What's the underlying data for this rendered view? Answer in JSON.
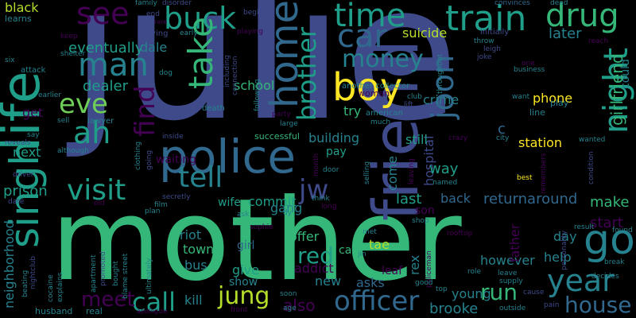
{
  "background_color": "#000000",
  "palette": {
    "dark_purple": "#440154",
    "indigo": "#3e4a89",
    "slate_blue": "#31688e",
    "teal": "#26828e",
    "sea_green": "#1f9e89",
    "green": "#35b779",
    "light_green": "#6ece58",
    "lime": "#b5de2b",
    "yellow": "#fde725"
  },
  "words": {
    "julie": "julie",
    "mother": "mother",
    "friend": "friend",
    "life": "life",
    "police": "police",
    "singh": "singh",
    "boy": "boy",
    "home": "home",
    "train": "train",
    "drug": "drug",
    "time": "time",
    "car": "car",
    "buck": "buck",
    "man": "man",
    "take": "take",
    "night": "night",
    "see": "see",
    "eve": "eve",
    "ah": "ah",
    "find": "find",
    "go": "go",
    "year": "year",
    "joon": "joon",
    "brother": "brother",
    "money": "money",
    "visit": "visit",
    "tell": "tell",
    "jw": "jw",
    "call": "call",
    "officer": "officer",
    "jung": "jung",
    "house": "house",
    "meet": "meet",
    "red": "red",
    "run": "run",
    "girlfriend": "girlfriend",
    "later": "later",
    "prison": "prison",
    "dealer": "dealer",
    "station": "station",
    "phone": "phone",
    "returnaround": "returnaround",
    "start": "start",
    "make": "make",
    "neighborhood": "neighborhood",
    "black": "black",
    "eventually": "eventually",
    "dale": "dale",
    "school": "school",
    "suicide": "suicide",
    "brooke": "brooke",
    "crime": "crime",
    "hospital": "hospital",
    "building": "building",
    "commit": "commit",
    "way": "way",
    "come": "come",
    "last": "last",
    "back": "back",
    "son": "son",
    "gang": "gang",
    "riot": "riot",
    "town": "town",
    "bus": "bus",
    "give": "give",
    "show": "show",
    "offer": "offer",
    "addict": "addict",
    "new": "new",
    "asks": "asks",
    "however": "however",
    "father": "father",
    "day": "day",
    "help": "help",
    "also": "also",
    "young": "young",
    "kill": "kill",
    "girl": "girl",
    "tae": "tae",
    "care": "care",
    "try": "try",
    "pay": "pay",
    "still": "still",
    "wife": "wife",
    "waiting": "waiting",
    "get": "get",
    "next": "next",
    "could": "could",
    "learns": "learns",
    "keep": "keep",
    "family": "family",
    "disorder": "disorder",
    "trying": "trying",
    "early": "early",
    "playing": "playing",
    "convinces": "convinces",
    "dead": "dead",
    "reach": "reach",
    "initially": "initially",
    "leigh": "leigh",
    "joke": "joke",
    "another_collector": "another collector",
    "woman": "woman",
    "american": "american",
    "club": "club",
    "lift": "lift",
    "much": "much",
    "line": "line",
    "want": "want",
    "play": "play",
    "successful": "successful",
    "large": "large",
    "party": "party",
    "lawyer": "lawyer",
    "sell": "sell",
    "death": "death",
    "six": "six",
    "attack": "attack",
    "earlier": "earlier",
    "shelter": "shelter",
    "dog": "dog",
    "including": "including",
    "connection": "connection",
    "following": "following",
    "inside": "inside",
    "although": "although",
    "clothing": "clothing",
    "going": "going",
    "reveals": "reveals",
    "say": "say",
    "driver": "driver",
    "date": "date",
    "secretly": "secretly",
    "film": "film",
    "plan": "plan",
    "ask": "ask",
    "sophie": "sophie",
    "think": "think",
    "long": "long",
    "named": "named",
    "best": "best",
    "wanted": "wanted",
    "city": "city",
    "crazy": "crazy",
    "throughout": "throughout",
    "one": "one",
    "business": "business",
    "throw": "throw",
    "found": "found",
    "result": "result",
    "break": "break",
    "decides": "decides",
    "condition": "condition",
    "personality": "personality",
    "leave": "leave",
    "supply": "supply",
    "role": "role",
    "cause": "cause",
    "pain": "pain",
    "outside": "outside",
    "rooftop": "rooftop",
    "shop": "shop",
    "policeman": "policeman",
    "leaf": "leaf",
    "rex": "rex",
    "jin": "jin",
    "met": "met",
    "good": "good",
    "top": "top",
    "soon": "soon",
    "age": "age",
    "front": "front",
    "husband": "husband",
    "real": "real",
    "bought": "bought",
    "blame_street": "blame street",
    "ultimately": "ultimately",
    "apartment": "apartment",
    "promoted": "promoted",
    "cocaine": "cocaine",
    "explains": "explains",
    "beating": "beating",
    "nightclub": "nightclub",
    "apologize": "apologize",
    "month": "month",
    "door": "door",
    "selling": "selling",
    "leaving": "leaving",
    "end": "end",
    "rare": "rare",
    "begin": "begin",
    "old": "old",
    "dy": "dy",
    "remembers": "remembers",
    "c": "c"
  }
}
